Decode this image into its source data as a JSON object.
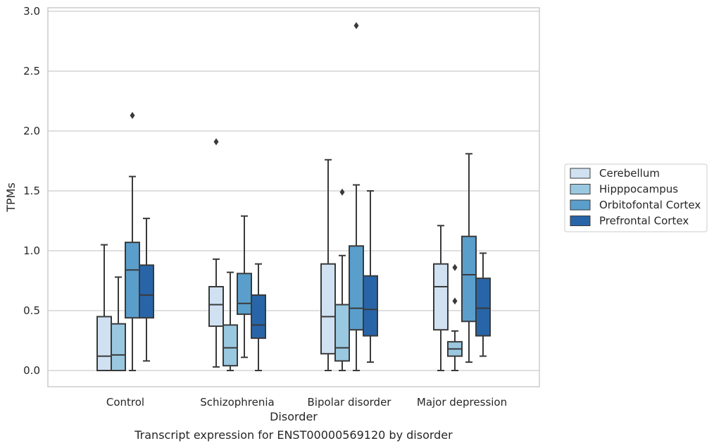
{
  "chart_data": {
    "type": "box",
    "xlabel": "Disorder",
    "ylabel": "TPMs",
    "caption": "Transcript expression for ENST00000569120 by disorder",
    "ylim": [
      -0.14,
      3.03
    ],
    "yticks": [
      "0.0",
      "0.5",
      "1.0",
      "1.5",
      "2.0",
      "2.5",
      "3.0"
    ],
    "grid": true,
    "legend_position": "right",
    "categories": [
      "Control",
      "Schizophrenia",
      "Bipolar disorder",
      "Major depression"
    ],
    "series": [
      {
        "name": "Cerebellum",
        "color": "#d0e1f2",
        "boxes": [
          {
            "whislo": 0.0,
            "q1": 0.0,
            "med": 0.12,
            "q3": 0.45,
            "whishi": 1.05,
            "fliers": []
          },
          {
            "whislo": 0.03,
            "q1": 0.37,
            "med": 0.55,
            "q3": 0.7,
            "whishi": 0.93,
            "fliers": [
              1.91
            ]
          },
          {
            "whislo": 0.0,
            "q1": 0.14,
            "med": 0.45,
            "q3": 0.89,
            "whishi": 1.76,
            "fliers": []
          },
          {
            "whislo": 0.0,
            "q1": 0.34,
            "med": 0.7,
            "q3": 0.89,
            "whishi": 1.21,
            "fliers": []
          }
        ]
      },
      {
        "name": "Hipppocampus",
        "color": "#9ac8e0",
        "boxes": [
          {
            "whislo": 0.0,
            "q1": 0.0,
            "med": 0.13,
            "q3": 0.39,
            "whishi": 0.78,
            "fliers": []
          },
          {
            "whislo": 0.0,
            "q1": 0.04,
            "med": 0.19,
            "q3": 0.38,
            "whishi": 0.82,
            "fliers": []
          },
          {
            "whislo": 0.0,
            "q1": 0.08,
            "med": 0.19,
            "q3": 0.55,
            "whishi": 0.96,
            "fliers": [
              1.49
            ]
          },
          {
            "whislo": 0.0,
            "q1": 0.12,
            "med": 0.18,
            "q3": 0.24,
            "whishi": 0.33,
            "fliers": [
              0.58,
              0.86
            ]
          }
        ]
      },
      {
        "name": "Orbitofontal Cortex",
        "color": "#5a9ecc",
        "boxes": [
          {
            "whislo": 0.0,
            "q1": 0.44,
            "med": 0.84,
            "q3": 1.07,
            "whishi": 1.62,
            "fliers": [
              2.13
            ]
          },
          {
            "whislo": 0.11,
            "q1": 0.47,
            "med": 0.56,
            "q3": 0.81,
            "whishi": 1.29,
            "fliers": []
          },
          {
            "whislo": 0.0,
            "q1": 0.34,
            "med": 0.52,
            "q3": 1.04,
            "whishi": 1.55,
            "fliers": [
              2.88
            ]
          },
          {
            "whislo": 0.07,
            "q1": 0.41,
            "med": 0.8,
            "q3": 1.12,
            "whishi": 1.81,
            "fliers": []
          }
        ]
      },
      {
        "name": "Prefrontal Cortex",
        "color": "#2865a8",
        "boxes": [
          {
            "whislo": 0.08,
            "q1": 0.44,
            "med": 0.63,
            "q3": 0.88,
            "whishi": 1.27,
            "fliers": []
          },
          {
            "whislo": 0.0,
            "q1": 0.27,
            "med": 0.38,
            "q3": 0.63,
            "whishi": 0.89,
            "fliers": []
          },
          {
            "whislo": 0.07,
            "q1": 0.29,
            "med": 0.51,
            "q3": 0.79,
            "whishi": 1.5,
            "fliers": []
          },
          {
            "whislo": 0.12,
            "q1": 0.29,
            "med": 0.52,
            "q3": 0.77,
            "whishi": 0.98,
            "fliers": []
          }
        ]
      }
    ]
  }
}
